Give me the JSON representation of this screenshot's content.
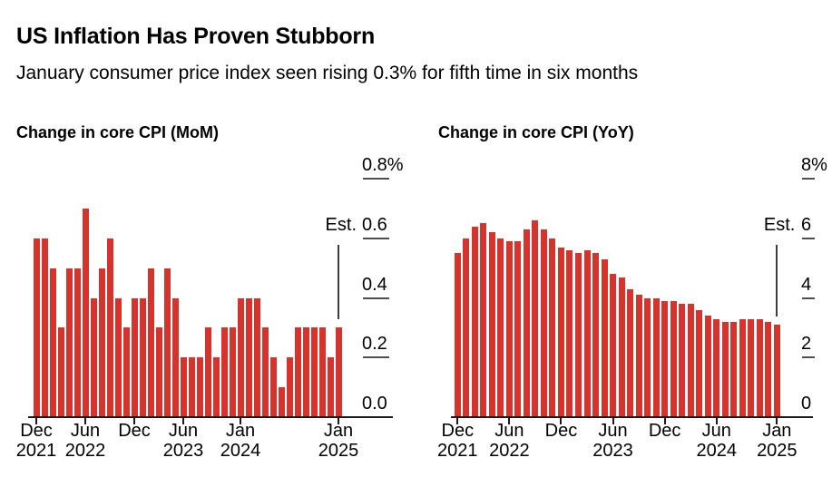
{
  "header": {
    "title": "US Inflation Has Proven Stubborn",
    "subtitle": "January consumer price index seen rising 0.3% for fifth time in six months"
  },
  "colors": {
    "background": "#ffffff",
    "bar_red": "#d5332c",
    "text_black": "#000000",
    "axis_black": "#1a1a1a",
    "tick_gray": "#4f4f4f",
    "estimate_line_gray": "#3c3c3c"
  },
  "chart_data": [
    {
      "type": "bar",
      "title": "Change in core CPI (MoM)",
      "xlabel": "",
      "ylabel": "",
      "grid": false,
      "legend": "none",
      "y_axis_side": "right",
      "x": [
        "Dec 2021",
        "Jan 2022",
        "Feb 2022",
        "Mar 2022",
        "Apr 2022",
        "May 2022",
        "Jun 2022",
        "Jul 2022",
        "Aug 2022",
        "Sep 2022",
        "Oct 2022",
        "Nov 2022",
        "Dec 2022",
        "Jan 2023",
        "Feb 2023",
        "Mar 2023",
        "Apr 2023",
        "May 2023",
        "Jun 2023",
        "Jul 2023",
        "Aug 2023",
        "Sep 2023",
        "Oct 2023",
        "Nov 2023",
        "Dec 2023",
        "Jan 2024",
        "Feb 2024",
        "Mar 2024",
        "Apr 2024",
        "May 2024",
        "Jun 2024",
        "Jul 2024",
        "Aug 2024",
        "Sep 2024",
        "Oct 2024",
        "Nov 2024",
        "Dec 2024",
        "Jan 2025"
      ],
      "values": [
        0.6,
        0.6,
        0.5,
        0.3,
        0.5,
        0.5,
        0.7,
        0.4,
        0.5,
        0.6,
        0.4,
        0.3,
        0.4,
        0.4,
        0.5,
        0.3,
        0.5,
        0.4,
        0.2,
        0.2,
        0.2,
        0.3,
        0.2,
        0.3,
        0.3,
        0.4,
        0.4,
        0.4,
        0.3,
        0.2,
        0.1,
        0.2,
        0.3,
        0.3,
        0.3,
        0.3,
        0.2,
        0.3
      ],
      "ylim": [
        0,
        0.8
      ],
      "y_axis": {
        "ticks": [
          {
            "label": "0.8%",
            "value": 0.8
          },
          {
            "label": "0.6",
            "value": 0.6
          },
          {
            "label": "0.4",
            "value": 0.4
          },
          {
            "label": "0.2",
            "value": 0.2
          },
          {
            "label": "0.0",
            "value": 0.0
          }
        ]
      },
      "x_axis": {
        "ticks": [
          {
            "index": 0,
            "line1": "Dec",
            "line2": "2021"
          },
          {
            "index": 6,
            "line1": "Jun",
            "line2": "2022"
          },
          {
            "index": 12,
            "line1": "Dec",
            "line2": ""
          },
          {
            "index": 18,
            "line1": "Jun",
            "line2": "2023"
          },
          {
            "index": 25,
            "line1": "Jan",
            "line2": "2024"
          },
          {
            "index": 37,
            "line1": "Jan",
            "line2": "2025"
          }
        ]
      },
      "estimate": {
        "label": "Est.",
        "index": 37,
        "month": "Jan 2025",
        "value": 0.3
      }
    },
    {
      "type": "bar",
      "title": "Change in core CPI (YoY)",
      "xlabel": "",
      "ylabel": "",
      "grid": false,
      "legend": "none",
      "y_axis_side": "right",
      "x": [
        "Dec 2021",
        "Jan 2022",
        "Feb 2022",
        "Mar 2022",
        "Apr 2022",
        "May 2022",
        "Jun 2022",
        "Jul 2022",
        "Aug 2022",
        "Sep 2022",
        "Oct 2022",
        "Nov 2022",
        "Dec 2022",
        "Jan 2023",
        "Feb 2023",
        "Mar 2023",
        "Apr 2023",
        "May 2023",
        "Jun 2023",
        "Jul 2023",
        "Aug 2023",
        "Sep 2023",
        "Oct 2023",
        "Nov 2023",
        "Dec 2023",
        "Jan 2024",
        "Feb 2024",
        "Mar 2024",
        "Apr 2024",
        "May 2024",
        "Jun 2024",
        "Jul 2024",
        "Aug 2024",
        "Sep 2024",
        "Oct 2024",
        "Nov 2024",
        "Dec 2024",
        "Jan 2025"
      ],
      "values": [
        5.5,
        6.0,
        6.4,
        6.5,
        6.2,
        6.0,
        5.9,
        5.9,
        6.3,
        6.6,
        6.3,
        6.0,
        5.7,
        5.6,
        5.5,
        5.6,
        5.5,
        5.3,
        4.8,
        4.7,
        4.3,
        4.1,
        4.0,
        4.0,
        3.9,
        3.9,
        3.8,
        3.8,
        3.6,
        3.4,
        3.3,
        3.2,
        3.2,
        3.3,
        3.3,
        3.3,
        3.2,
        3.1
      ],
      "ylim": [
        0,
        8
      ],
      "y_axis": {
        "ticks": [
          {
            "label": "8%",
            "value": 8
          },
          {
            "label": "6",
            "value": 6
          },
          {
            "label": "4",
            "value": 4
          },
          {
            "label": "2",
            "value": 2
          },
          {
            "label": "0",
            "value": 0
          }
        ]
      },
      "x_axis": {
        "ticks": [
          {
            "index": 0,
            "line1": "Dec",
            "line2": "2021"
          },
          {
            "index": 6,
            "line1": "Jun",
            "line2": "2022"
          },
          {
            "index": 12,
            "line1": "Dec",
            "line2": ""
          },
          {
            "index": 18,
            "line1": "Jun",
            "line2": "2023"
          },
          {
            "index": 24,
            "line1": "Dec",
            "line2": ""
          },
          {
            "index": 30,
            "line1": "Jun",
            "line2": "2024"
          },
          {
            "index": 37,
            "line1": "Jan",
            "line2": "2025"
          }
        ]
      },
      "estimate": {
        "label": "Est.",
        "index": 37,
        "month": "Jan 2025",
        "value": 3.1
      }
    }
  ]
}
